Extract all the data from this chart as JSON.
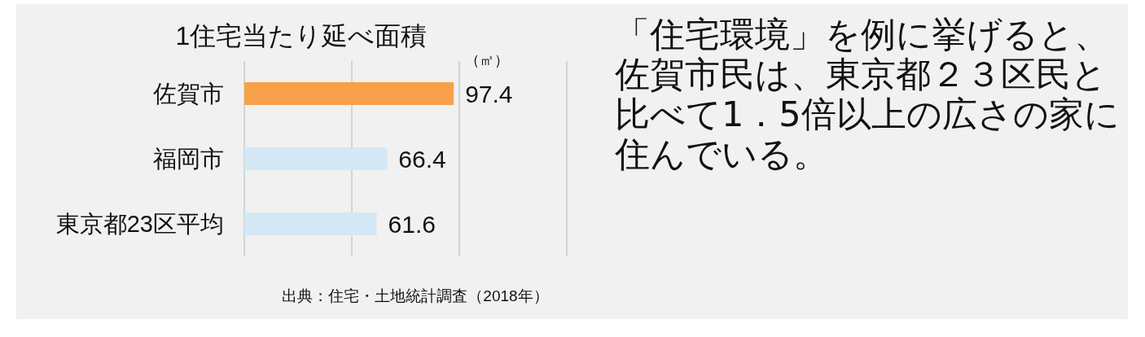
{
  "chart_data": [
    {
      "type": "bar",
      "orientation": "horizontal",
      "title": "1住宅当たり延べ面積",
      "xlabel": "（㎡）",
      "categories": [
        "佐賀市",
        "福岡市",
        "東京都23区平均"
      ],
      "values": [
        97.4,
        66.4,
        61.6
      ],
      "colors": [
        "#f8a04a",
        "#d4e8f5",
        "#d4e8f5"
      ],
      "data_labels": true,
      "xlim": [
        0,
        150
      ],
      "xticks": [
        {
          "value": 0,
          "label": null
        },
        {
          "value": 50,
          "label": null
        },
        {
          "value": 100,
          "label": null
        },
        {
          "value": 150,
          "label": null
        }
      ],
      "tick_labels": "y",
      "grid": "x",
      "annotations": [
        "出典：住宅・土地統計調査（2018年）"
      ]
    },
    {
      "type": "other",
      "title": "「住宅環境」を例に挙げると、佐賀市民は、東京都２３区民と比べて1．5倍以上の広さの家に住んでいる。"
    }
  ]
}
